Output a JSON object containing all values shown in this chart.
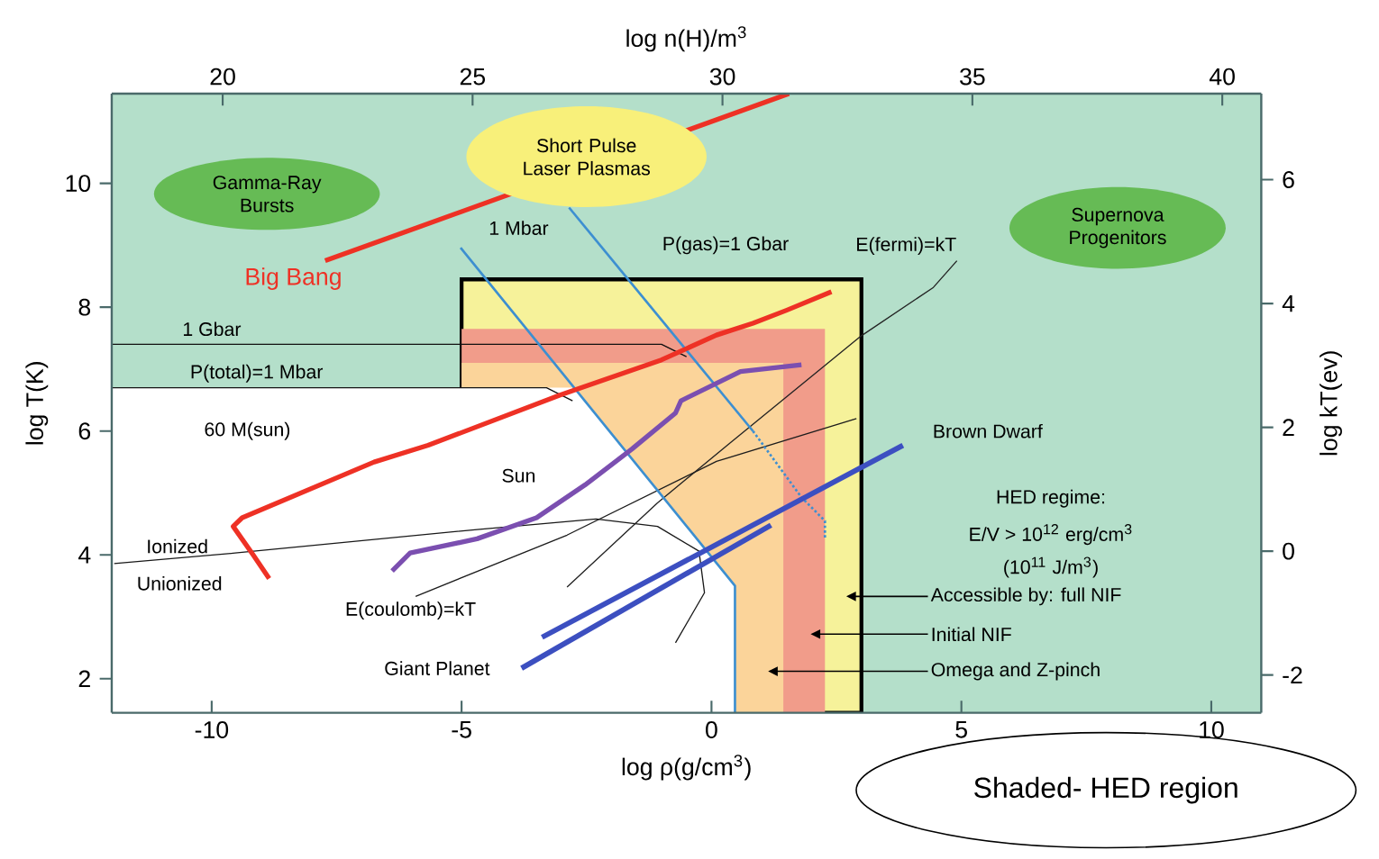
{
  "chart_data": {
    "type": "line",
    "xlabel": "log ρ(g/cm$^{3}$)",
    "ylabel": "log T(K)",
    "x2label": "log n(H)/m$^{3}$",
    "y2label": "log kT(ev)",
    "xlim": [
      -12,
      11
    ],
    "ylim": [
      1.45,
      11.45
    ],
    "xticks": [
      -10,
      -5,
      0,
      5,
      10
    ],
    "yticks": [
      2,
      4,
      6,
      8,
      10
    ],
    "x2lim": [
      17.78,
      40.78
    ],
    "x2ticks": [
      20,
      25,
      30,
      35,
      40
    ],
    "y2lim": [
      -2.61,
      7.39
    ],
    "y2ticks": [
      -2,
      0,
      2,
      4,
      6
    ],
    "bands": [
      {
        "axis": "x",
        "from": -12,
        "to": 11,
        "color": "#b4dfca"
      }
    ],
    "series": [
      {
        "type": "area",
        "color": "#f6f29a",
        "x": [
          -5,
          3
        ],
        "values": [
          8.45,
          8.45
        ]
      },
      {
        "type": "area",
        "color": "#f19c8a",
        "x": [
          -5,
          2.27
        ],
        "values": [
          7.65,
          7.65
        ]
      },
      {
        "type": "area",
        "color": "#fbd49a",
        "x": [
          -5,
          1.44
        ],
        "values": [
          7.1,
          7.1
        ]
      },
      {
        "type": "area",
        "color": "#ffffff",
        "x": [
          -12,
          -2.75,
          0.47,
          0.47
        ],
        "values": [
          6.7,
          6.7,
          3.5,
          1.45
        ]
      },
      {
        "color": "#101010",
        "x": [
          -12,
          -1.0,
          -0.5
        ],
        "values": [
          7.4,
          7.4,
          7.2
        ]
      },
      {
        "color": "#141414",
        "x": [
          -12,
          -3.3,
          -2.78
        ],
        "values": [
          6.7,
          6.7,
          6.49
        ]
      },
      {
        "color": "#181818",
        "x": [
          -11.95,
          -9.53,
          -4.69,
          -2.31,
          -1.08,
          -0.25,
          -0.14,
          -0.72
        ],
        "values": [
          3.86,
          4.03,
          4.41,
          4.58,
          4.46,
          4.06,
          3.39,
          2.58
        ]
      },
      {
        "color": "#1c1c1c",
        "x": [
          -5.92,
          -2.89,
          0.1,
          2.9
        ],
        "values": [
          3.33,
          4.32,
          5.51,
          6.2
        ]
      },
      {
        "color": "#222222",
        "x": [
          -2.89,
          -1.08,
          0.36,
          3.0,
          4.44,
          4.91
        ],
        "values": [
          3.48,
          4.84,
          5.8,
          7.54,
          8.32,
          8.75
        ]
      },
      {
        "color": "#3d8fd0",
        "x": [
          -5.02,
          0.47,
          0.47
        ],
        "values": [
          8.96,
          3.5,
          1.45
        ]
      },
      {
        "color": "#3d8fd1",
        "x": [
          -2.85,
          0.83
        ],
        "values": [
          9.61,
          6.0
        ]
      },
      {
        "color": "#3d8fd1",
        "line_style": "dotted",
        "x": [
          0.83,
          1.8,
          2.27,
          2.27
        ],
        "values": [
          6.0,
          4.93,
          4.55,
          4.26
        ]
      },
      {
        "color": "#ee3124",
        "x": [
          -7.73,
          1.55
        ],
        "values": [
          8.75,
          11.45
        ]
      },
      {
        "color": "#ee3125",
        "x": [
          -8.85,
          -9.17,
          -9.57,
          -9.39,
          -6.75,
          -5.67,
          -3.03,
          -1.0,
          0.1,
          0.83,
          1.5,
          2.4
        ],
        "values": [
          3.62,
          4.0,
          4.46,
          4.6,
          5.5,
          5.77,
          6.58,
          7.15,
          7.55,
          7.74,
          7.95,
          8.25
        ]
      },
      {
        "color": "#7b4fb0",
        "x": [
          -6.39,
          -6.03,
          -4.69,
          -3.5,
          -2.53,
          -1.59,
          -0.72,
          -0.61,
          0.58,
          1.8
        ],
        "values": [
          3.74,
          4.03,
          4.26,
          4.6,
          5.13,
          5.71,
          6.29,
          6.49,
          6.96,
          7.07
        ]
      },
      {
        "color": "#3c4fc0",
        "x": [
          -3.8,
          1.19
        ],
        "values": [
          2.17,
          4.48
        ]
      },
      {
        "color": "#3c4fc1",
        "x": [
          -3.39,
          3.83
        ],
        "values": [
          2.67,
          5.77
        ]
      }
    ],
    "annotations": [
      "Gamma-Ray Bursts",
      "Short Pulse Laser Plasmas",
      "Supernova Progenitors",
      "Big Bang",
      "60 M(sun)",
      "Sun",
      "Giant Planet",
      "Brown Dwarf",
      "1 Mbar",
      "P(gas)=1 Gbar",
      "E(fermi)=kT",
      "E(coulomb)=kT",
      "1 Gbar",
      "P(total)=1 Mbar",
      "Ionized",
      "Unionized",
      "Accessible by: full NIF",
      "Initial NIF",
      "Omega and Z-pinch",
      "HED regime:",
      "E/V > 10$^{12}$ erg/cm$^{3}$",
      "(10$^{11}$ J/m$^{3}$)",
      "Shaded- HED region"
    ]
  }
}
